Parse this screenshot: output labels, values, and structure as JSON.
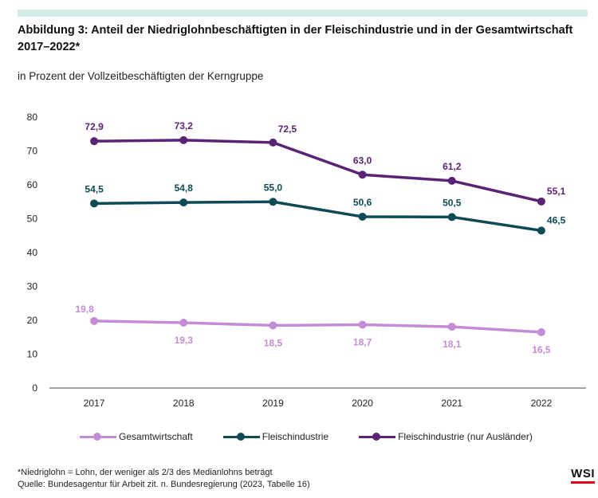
{
  "header": {
    "title": "Abbildung 3: Anteil der Niedriglohnbeschäftigten in der Fleischindustrie und in der Gesamtwirtschaft 2017–2022*",
    "subtitle": "in Prozent der Vollzeitbeschäftigten der Kerngruppe"
  },
  "chart_data": {
    "type": "line",
    "title": "Abbildung 3: Anteil der Niedriglohnbeschäftigten in der Fleischindustrie und in der Gesamtwirtschaft 2017–2022*",
    "subtitle": "in Prozent der Vollzeitbeschäftigten der Kerngruppe",
    "xlabel": "",
    "ylabel": "",
    "x": [
      "2017",
      "2018",
      "2019",
      "2020",
      "2021",
      "2022"
    ],
    "ylim": [
      0,
      80
    ],
    "yticks": [
      0,
      10,
      20,
      30,
      40,
      50,
      60,
      70,
      80
    ],
    "grid": false,
    "legend_position": "bottom",
    "series": [
      {
        "name": "Gesamtwirtschaft",
        "color": "#c48bd6",
        "values": [
          19.8,
          19.3,
          18.5,
          18.7,
          18.1,
          16.5
        ],
        "labels": [
          "19,8",
          "19,3",
          "18,5",
          "18,7",
          "18,1",
          "16,5"
        ],
        "label_side": [
          "above",
          "below",
          "below",
          "below",
          "below",
          "below"
        ]
      },
      {
        "name": "Fleischindustrie",
        "color": "#0f4a57",
        "values": [
          54.5,
          54.8,
          55.0,
          50.6,
          50.5,
          46.5
        ],
        "labels": [
          "54,5",
          "54,8",
          "55,0",
          "50,6",
          "50,5",
          "46,5"
        ],
        "label_side": [
          "above",
          "above",
          "above",
          "above",
          "above",
          "right"
        ]
      },
      {
        "name": "Fleischindustrie (nur Ausländer)",
        "color": "#5b2374",
        "values": [
          72.9,
          73.2,
          72.5,
          63.0,
          61.2,
          55.1
        ],
        "labels": [
          "72,9",
          "73,2",
          "72,5",
          "63,0",
          "61,2",
          "55,1"
        ],
        "label_side": [
          "above",
          "above",
          "above-right",
          "above",
          "above",
          "right"
        ]
      }
    ]
  },
  "footer": {
    "note": "*Niedriglohn = Lohn, der weniger als 2/3 des Medianlohns beträgt",
    "source": "Quelle: Bundesagentur für Arbeit zit. n. Bundesregierung (2023, Tabelle 16)",
    "brand": "WSI"
  }
}
